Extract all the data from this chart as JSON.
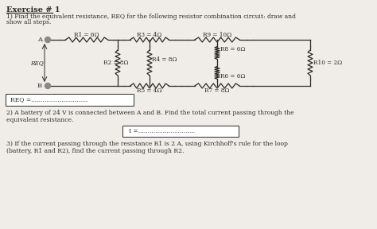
{
  "title": "Exercise # 1",
  "bg_color": "#f0ede8",
  "text_color": "#2a2a2a",
  "line1": "1) Find the equivalent resistance, REQ for the following resistor combination circuit: draw and",
  "line2": "show all steps.",
  "answer_box1_label": "REQ =",
  "answer_box1_dots": "..............................",
  "part2_line1": "2) A battery of 24 V is connected between A and B. Find the total current passing through the",
  "part2_line2": "equivalent resistance.",
  "answer_box2_label": "I =",
  "answer_box2_dots": "..............................",
  "part3_line1": "3) If the current passing through the resistance R1 is 2 A, using Kirchhoff's rule for the loop",
  "part3_line2": "(battery, R1 and R2), find the current passing through R2.",
  "R1": "R1 = 6Ω",
  "R2": "R2 = 8Ω",
  "R3": "R3 = 4Ω",
  "R4": "R4 = 8Ω",
  "R5": "R5 = 4Ω",
  "R6": "R6 = 6Ω",
  "R7": "R7 = 8Ω",
  "R8": "R8 = 6Ω",
  "R9": "R9 = 10Ω",
  "R10": "R10 = 2Ω",
  "node_A": "A",
  "node_B": "B",
  "Req_label": "REQ"
}
